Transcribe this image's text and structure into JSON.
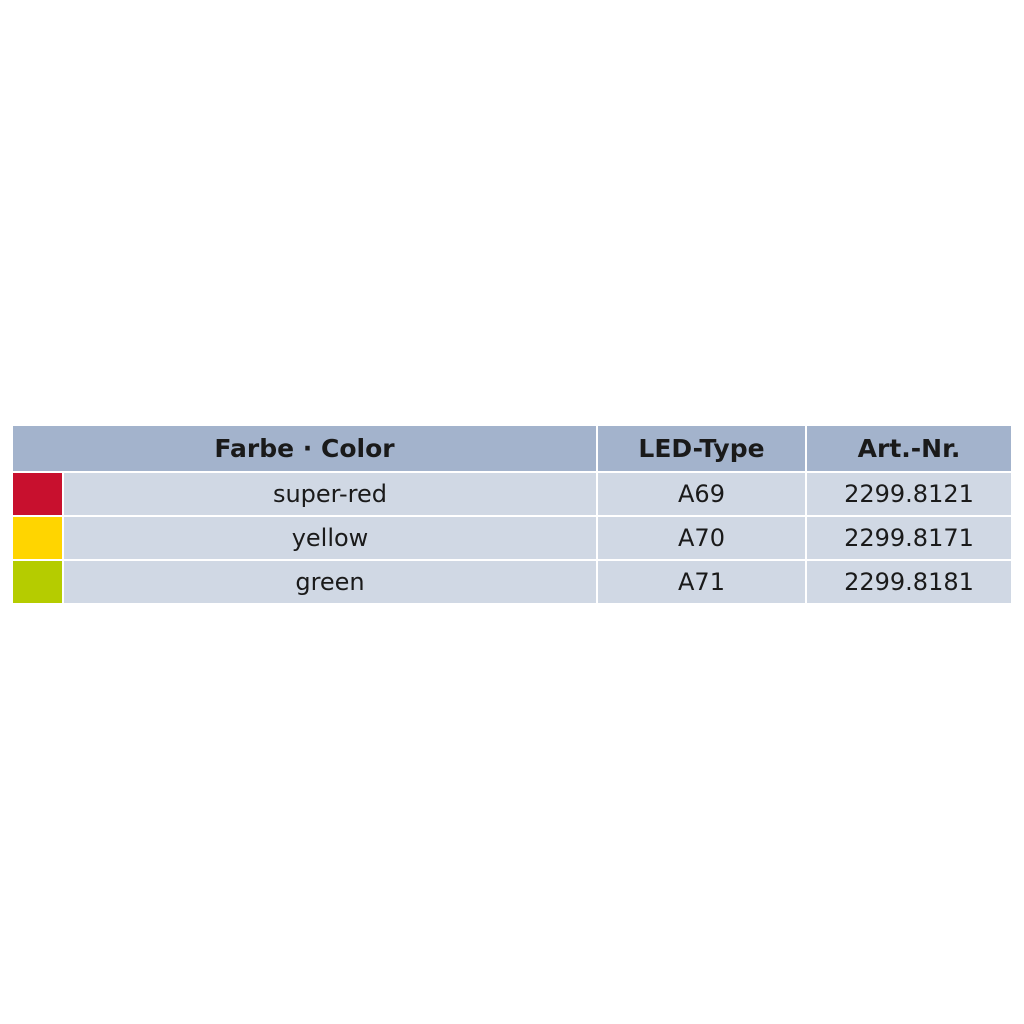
{
  "table": {
    "headers": {
      "color": "Farbe · Color",
      "led_type": "LED-Type",
      "art_nr": "Art.-Nr."
    },
    "rows": [
      {
        "color": "super-red",
        "swatch": "#c8102e",
        "led_type": "A69",
        "art_nr": "2299.8121"
      },
      {
        "color": "yellow",
        "swatch": "#ffd500",
        "led_type": "A70",
        "art_nr": "2299.8171"
      },
      {
        "color": "green",
        "swatch": "#b5cc00",
        "led_type": "A71",
        "art_nr": "2299.8181"
      }
    ]
  }
}
